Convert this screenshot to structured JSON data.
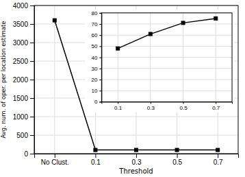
{
  "chart_data": [
    {
      "type": "line",
      "categories": [
        "No Clust.",
        "0.1",
        "0.3",
        "0.5",
        "0.7"
      ],
      "values": [
        3600,
        100,
        100,
        100,
        100
      ],
      "xlabel": "Threshold",
      "ylabel": "Avg. num. of oper. per location estimate",
      "ylim": [
        0,
        4000
      ],
      "yticks": [
        0,
        500,
        1000,
        1500,
        2000,
        2500,
        3000,
        3500,
        4000
      ],
      "grid": true,
      "color": "#000000",
      "marker": "square"
    },
    {
      "type": "line",
      "x": [
        0.1,
        0.3,
        0.5,
        0.7
      ],
      "values": [
        48,
        61,
        71,
        75
      ],
      "xlim": [
        0.0,
        0.8
      ],
      "ylim": [
        0,
        80
      ],
      "xticks": [
        0.1,
        0.3,
        0.5,
        0.7
      ],
      "yticks": [
        0,
        10,
        20,
        30,
        40,
        50,
        60,
        70,
        80
      ],
      "grid": true,
      "color": "#000000",
      "marker": "square"
    }
  ]
}
